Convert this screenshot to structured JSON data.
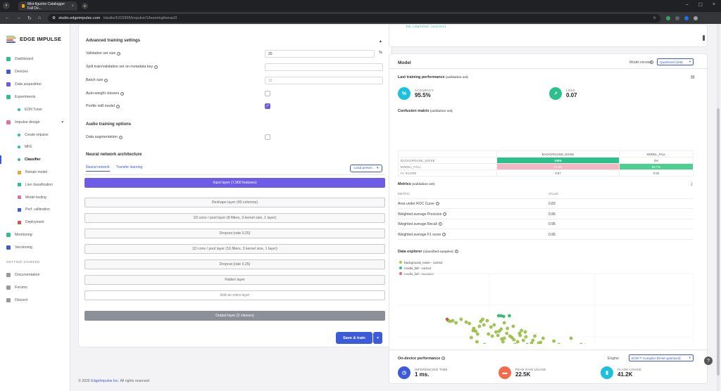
{
  "browser": {
    "tab_title": "Mini-figurine Catalogger Fall De...",
    "url_host": "studio.edgeimpulse.com",
    "url_path": "/studio/1015905/impulse/1/learning/keras/3"
  },
  "sidebar": {
    "brand": "EDGE IMPULSE",
    "items": [
      {
        "label": "Dashboard"
      },
      {
        "label": "Devices"
      },
      {
        "label": "Data acquisition"
      },
      {
        "label": "Experiments"
      },
      {
        "label": "EON Tuner"
      },
      {
        "label": "Impulse design"
      },
      {
        "label": "Create impulse"
      },
      {
        "label": "MFE"
      },
      {
        "label": "Classifier"
      },
      {
        "label": "Retrain model"
      },
      {
        "label": "Live classification"
      },
      {
        "label": "Model testing"
      },
      {
        "label": "Perf. calibration"
      },
      {
        "label": "Deployment"
      },
      {
        "label": "Monitoring"
      },
      {
        "label": "Versioning"
      }
    ],
    "getting_started": "GETTING STARTED",
    "help_items": [
      {
        "label": "Documentation"
      },
      {
        "label": "Forums"
      },
      {
        "label": "Discord"
      }
    ]
  },
  "training": {
    "section_title": "Advanced training settings",
    "validation_size_label": "Validation set size",
    "validation_size_value": "20",
    "validation_size_unit": "%",
    "split_label": "Split train/validation set on metadata key",
    "batch_label": "Batch size",
    "batch_placeholder": "32",
    "auto_weight_label": "Auto-weight classes",
    "profile_int8_label": "Profile int8 model",
    "audio_title": "Audio training options",
    "augmentation_label": "Data augmentation",
    "nn_title": "Neural network architecture",
    "tab_nn": "Neural network",
    "tab_tl": "Transfer learning",
    "load_preset": "Load preset...",
    "layers": [
      "Input layer (7,960 features)",
      "Reshape layer (40 columns)",
      "1D conv / pool layer (8 filters, 3 kernel size, 1 layer)",
      "Dropout (rate 0.25)",
      "1D conv / pool layer (16 filters, 3 kernel size, 1 layer)",
      "Dropout (rate 0.25)",
      "Flatten layer",
      "Add an extra layer",
      "Output layer (2 classes)"
    ],
    "save_train": "Save & train",
    "log_text": "Job completed (success)"
  },
  "model": {
    "title": "Model",
    "version_label": "Model version:",
    "version_value": "Quantized (int8)",
    "last_perf_title": "Last training performance",
    "validation_set": "(validation set)",
    "accuracy_label": "ACCURACY",
    "accuracy_value": "95.5%",
    "loss_label": "LOSS",
    "loss_value": "0.07",
    "confusion_title": "Confusion matrix",
    "confusion": {
      "columns": [
        "BACKGROUND_NOISE",
        "MODEL_FALL"
      ],
      "rows": [
        {
          "label": "BACKGROUND_NOISE",
          "values": [
            "100%",
            "0%"
          ]
        },
        {
          "label": "MODEL_FALL",
          "values": [
            "13.3%",
            "86.7%"
          ]
        },
        {
          "label": "F1 SCORE",
          "values": [
            "0.97",
            "0.93"
          ]
        }
      ]
    },
    "metrics_title": "Metrics",
    "metrics_col_metric": "METRIC",
    "metrics_col_value": "VALUE",
    "metrics": [
      {
        "name": "Area under ROC Curve",
        "value": "0.83"
      },
      {
        "name": "Weighted average Precision",
        "value": "0.96"
      },
      {
        "name": "Weighted average Recall",
        "value": "0.95"
      },
      {
        "name": "Weighted average F1 score",
        "value": "0.95"
      }
    ],
    "explorer_title": "Data explorer",
    "explorer_sub": "(classified samples)",
    "legend": [
      {
        "label": "background_noise - correct",
        "color": "#a3c94a"
      },
      {
        "label": "model_fall - correct",
        "color": "#2dc08c"
      },
      {
        "label": "model_fall - incorrect",
        "color": "#d9534f"
      }
    ],
    "ondevice_title": "On-device performance",
    "engine_label": "Engine:",
    "engine_value": "EON™ Compiler (RAM optimized)",
    "inference_label": "INFERENCING TIME",
    "inference_value": "1 ms.",
    "ram_label": "PEAK RAM USAGE",
    "ram_value": "22.5K",
    "flash_label": "FLASH USAGE",
    "flash_value": "41.2K"
  },
  "footer": {
    "prefix": "© 2026",
    "company": "EdgeImpulse Inc.",
    "suffix": "All rights reserved"
  },
  "chart_data": {
    "type": "scatter",
    "series": [
      {
        "name": "background_noise - correct",
        "color": "#a3c94a",
        "x": [
          83,
          86,
          90,
          95,
          103,
          111,
          116,
          123,
          126,
          129,
          134,
          137,
          139,
          146,
          150,
          152,
          158,
          161,
          166,
          167,
          169,
          171,
          176,
          180,
          183,
          186,
          188,
          192,
          195,
          196,
          199,
          201,
          205,
          207,
          209,
          212,
          214,
          216,
          219,
          221,
          223,
          226,
          228,
          232,
          235,
          239,
          242,
          246,
          249,
          253,
          257,
          261,
          266,
          270,
          276,
          281,
          286,
          292,
          298,
          303,
          309,
          315,
          320,
          325,
          331,
          336,
          341,
          347,
          353,
          358,
          122,
          132,
          144,
          175,
          185,
          155,
          163,
          171,
          119,
          128,
          140,
          198,
          204,
          225,
          265,
          276,
          292,
          306,
          318,
          329,
          341
        ],
        "y": [
          380,
          381,
          380,
          383,
          378,
          382,
          384,
          391,
          395,
          399,
          381,
          378,
          386,
          399,
          389,
          402,
          396,
          401,
          392,
          406,
          410,
          383,
          391,
          402,
          404,
          407,
          414,
          410,
          398,
          401,
          418,
          408,
          403,
          414,
          417,
          420,
          412,
          408,
          402,
          416,
          425,
          419,
          411,
          405,
          421,
          423,
          428,
          430,
          409,
          421,
          414,
          423,
          418,
          427,
          431,
          434,
          431,
          426,
          415,
          426,
          433,
          435,
          428,
          422,
          417,
          425,
          430,
          434,
          429,
          416,
          394,
          388,
          380,
          398,
          388,
          386,
          395,
          405,
          404,
          410,
          414,
          394,
          396,
          412,
          426,
          405,
          414,
          419,
          426,
          434,
          435
        ]
      },
      {
        "name": "model_fall - correct",
        "color": "#2dc08c",
        "x": [
          162,
          166,
          170,
          179
        ],
        "y": [
          373,
          373,
          374,
          373
        ]
      },
      {
        "name": "model_fall - incorrect",
        "color": "#d9534f",
        "x": [
          81
        ],
        "y": [
          378
        ]
      }
    ]
  }
}
